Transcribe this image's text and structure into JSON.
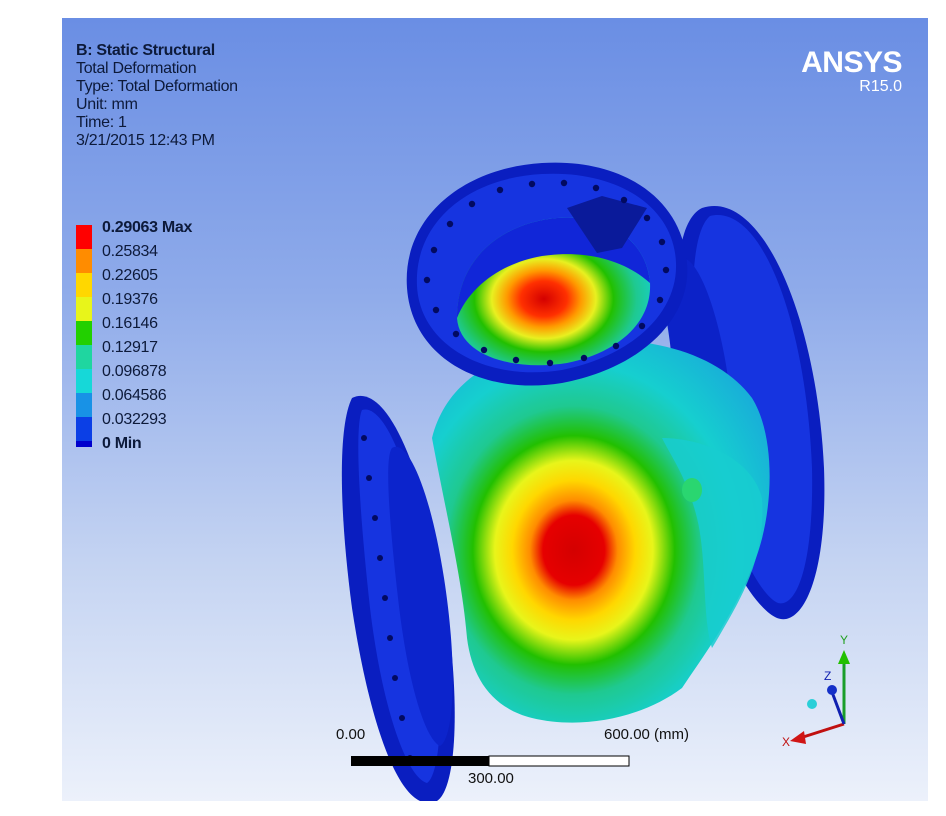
{
  "info": {
    "title": "B: Static Structural",
    "line1": "Total Deformation",
    "line2": "Type: Total Deformation",
    "line3": "Unit: mm",
    "line4": "Time: 1",
    "line5": "3/21/2015 12:43 PM"
  },
  "legend": [
    {
      "label": "0.29063 Max",
      "color": "#ff0000",
      "bold": true
    },
    {
      "label": "0.25834",
      "color": "#ff8c00",
      "bold": false
    },
    {
      "label": "0.22605",
      "color": "#ffd700",
      "bold": false
    },
    {
      "label": "0.19376",
      "color": "#e8f51a",
      "bold": false
    },
    {
      "label": "0.16146",
      "color": "#22d000",
      "bold": false
    },
    {
      "label": "0.12917",
      "color": "#1fd6a0",
      "bold": false
    },
    {
      "label": "0.096878",
      "color": "#16d8d8",
      "bold": false
    },
    {
      "label": "0.064586",
      "color": "#1892e6",
      "bold": false
    },
    {
      "label": "0.032293",
      "color": "#0b3fe6",
      "bold": false
    },
    {
      "label": "0 Min",
      "color": "#0000cc",
      "bold": true
    }
  ],
  "brand": {
    "name": "ANSYS",
    "version": "R15.0"
  },
  "scale": {
    "left_label": "0.00",
    "right_label": "600.00 (mm)",
    "mid_label": "300.00"
  },
  "triad": {
    "x": "X",
    "y": "Y",
    "z": "Z"
  }
}
